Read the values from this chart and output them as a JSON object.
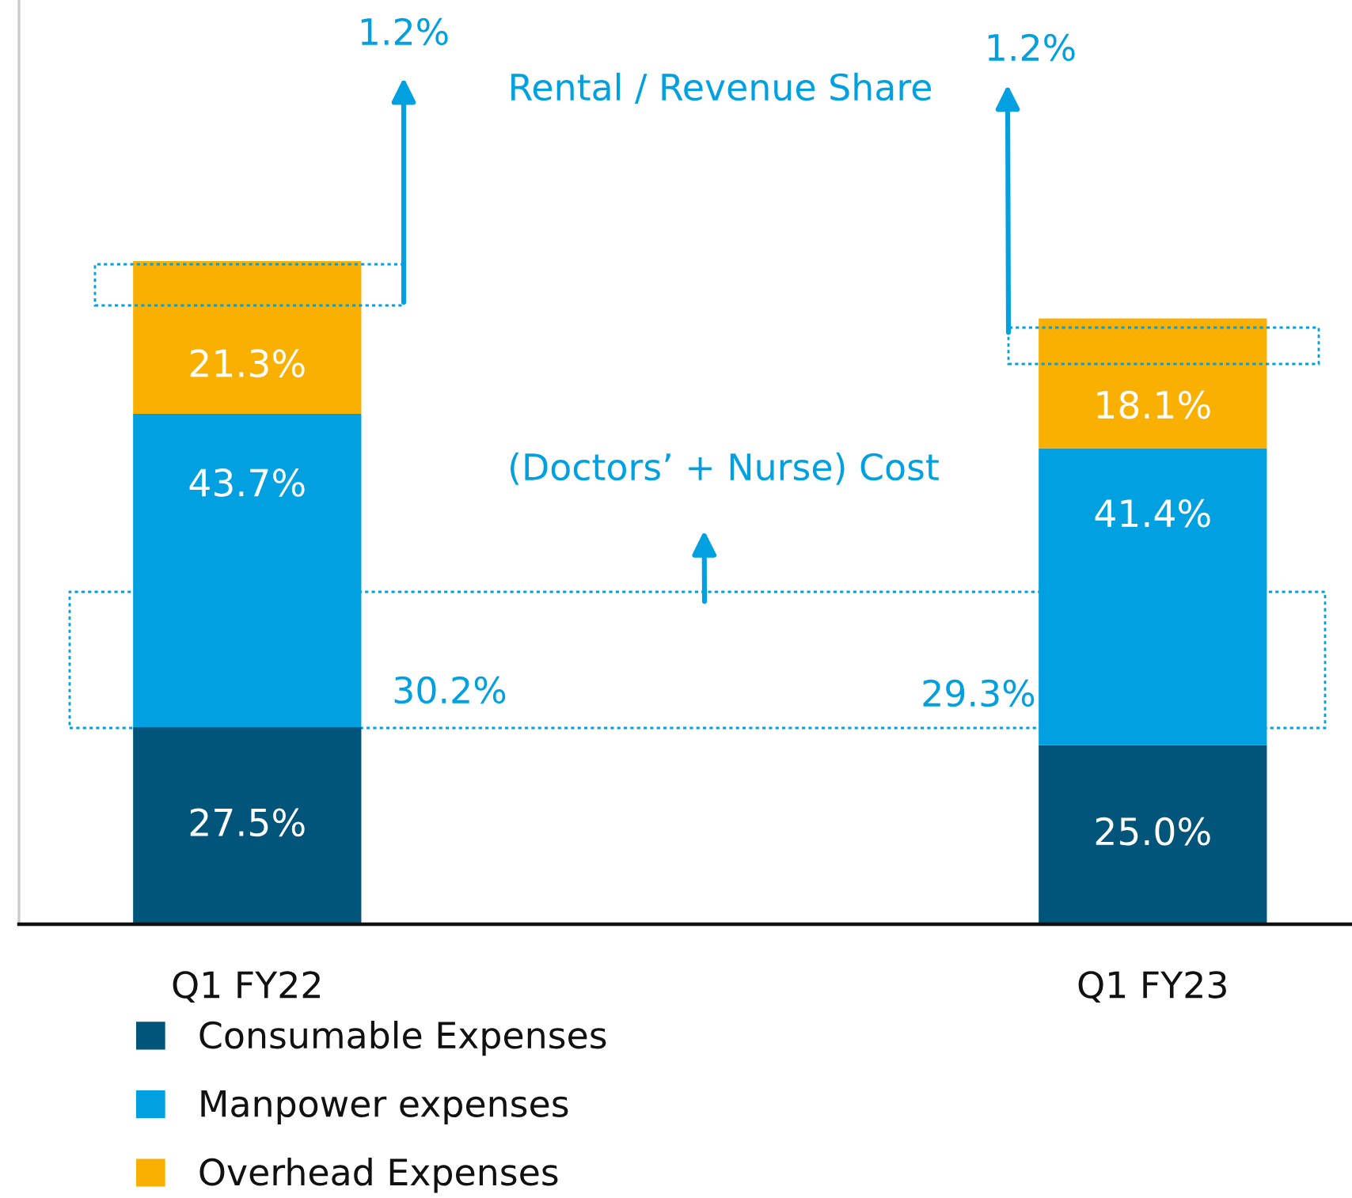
{
  "chart_data": {
    "type": "bar",
    "stacked": true,
    "categories": [
      "Q1 FY22",
      "Q1 FY23"
    ],
    "series": [
      {
        "name": "Consumable Expenses",
        "color": "#01557a",
        "values": [
          27.5,
          25.0
        ],
        "value_labels": [
          "27.5%",
          "25.0%"
        ]
      },
      {
        "name": "Manpower expenses",
        "color": "#00a0e1",
        "values": [
          43.7,
          41.4
        ],
        "value_labels": [
          "43.7%",
          "41.4%"
        ]
      },
      {
        "name": "Overhead Expenses",
        "color": "#fab000",
        "values": [
          21.3,
          18.1
        ],
        "value_labels": [
          "21.3%",
          "18.1%"
        ]
      }
    ],
    "annotations": [
      "1.2%",
      "1.2%",
      "Rental / Revenue Share",
      "(Doctors’ + Nurse) Cost",
      "30.2%",
      "29.3%"
    ],
    "legend": "bottom left",
    "tick_labels": "x"
  }
}
